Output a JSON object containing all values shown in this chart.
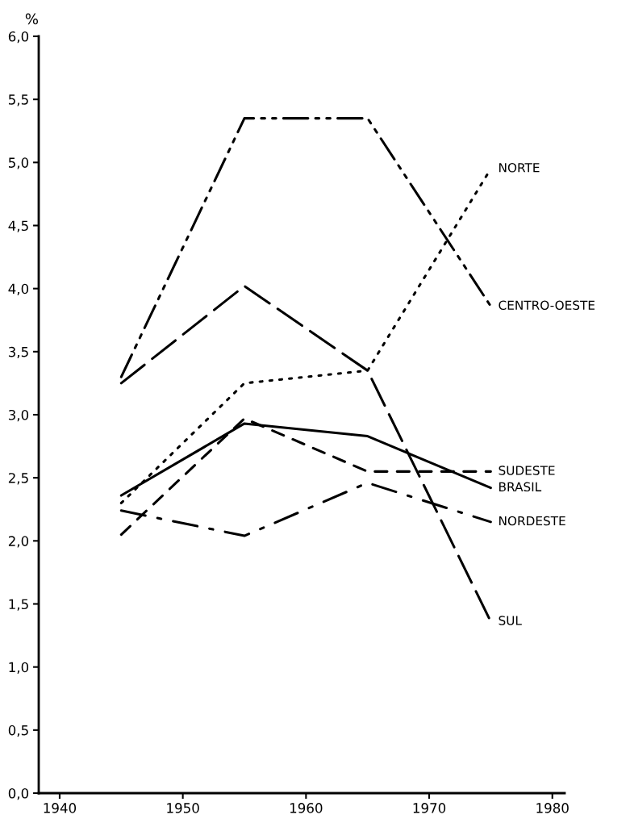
{
  "chart_data": {
    "type": "line",
    "ylabel": "%",
    "x": [
      1945,
      1955,
      1965,
      1975
    ],
    "series": [
      {
        "name": "NORTE",
        "color": "#000000",
        "line_style": "dotted",
        "values": [
          2.3,
          3.25,
          3.35,
          4.95
        ]
      },
      {
        "name": "CENTRO-OESTE",
        "color": "#000000",
        "line_style": "dashdotdot",
        "values": [
          3.3,
          5.35,
          5.35,
          3.86
        ]
      },
      {
        "name": "SUDESTE",
        "color": "#000000",
        "line_style": "dashed",
        "values": [
          2.05,
          2.97,
          2.55,
          2.55
        ]
      },
      {
        "name": "BRASIL",
        "color": "#000000",
        "line_style": "solid",
        "values": [
          2.36,
          2.93,
          2.83,
          2.42
        ]
      },
      {
        "name": "NORDESTE",
        "color": "#000000",
        "line_style": "dashdot",
        "values": [
          2.24,
          2.04,
          2.46,
          2.15
        ]
      },
      {
        "name": "SUL",
        "color": "#000000",
        "line_style": "longdash",
        "values": [
          3.25,
          4.02,
          3.35,
          1.36
        ]
      }
    ],
    "xlim": [
      1938.3,
      1981
    ],
    "xticks": [
      1940,
      1950,
      1960,
      1970,
      1980
    ],
    "ylim": [
      0,
      6
    ],
    "yticks": [
      {
        "value": 0,
        "label": "0,0"
      },
      {
        "value": 0.5,
        "label": "0,5"
      },
      {
        "value": 1,
        "label": "1,0"
      },
      {
        "value": 1.5,
        "label": "1,5"
      },
      {
        "value": 2,
        "label": "2,0"
      },
      {
        "value": 2.5,
        "label": "2,5"
      },
      {
        "value": 3,
        "label": "3,0"
      },
      {
        "value": 3.5,
        "label": "3,5"
      },
      {
        "value": 4,
        "label": "4,0"
      },
      {
        "value": 4.5,
        "label": "4,5"
      },
      {
        "value": 5,
        "label": "5,0"
      },
      {
        "value": 5.5,
        "label": "5,5"
      },
      {
        "value": 6,
        "label": "6,0"
      }
    ],
    "grid": false,
    "legend": false
  }
}
